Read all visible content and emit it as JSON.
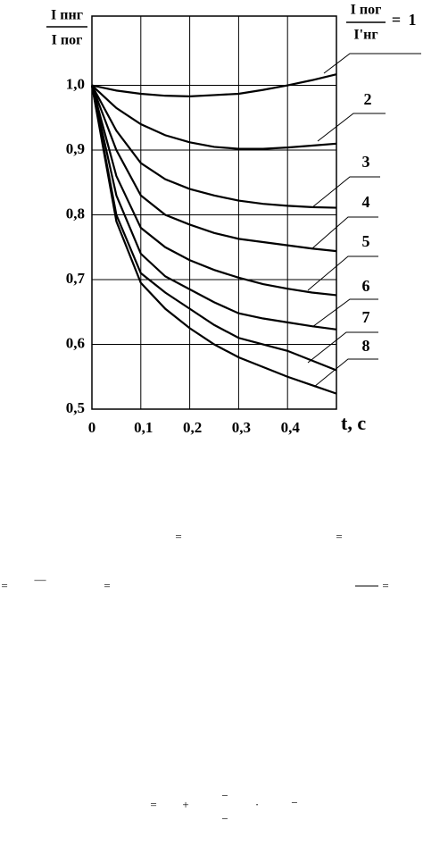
{
  "chart_data": {
    "type": "line",
    "y_label": {
      "numerator": "I пнг",
      "denominator": "I пог"
    },
    "legend_title": {
      "numerator": "I пог",
      "denominator": "I'нг",
      "equals": "="
    },
    "x_label": "t, c",
    "x": [
      0,
      0.05,
      0.1,
      0.15,
      0.2,
      0.25,
      0.3,
      0.35,
      0.4,
      0.45,
      0.5
    ],
    "series": [
      {
        "name": "1",
        "color": "#000000",
        "values": [
          1.0,
          0.992,
          0.987,
          0.984,
          0.983,
          0.985,
          0.987,
          0.993,
          1.0,
          1.008,
          1.017
        ]
      },
      {
        "name": "2",
        "color": "#000000",
        "values": [
          1.0,
          0.965,
          0.94,
          0.923,
          0.912,
          0.905,
          0.902,
          0.902,
          0.904,
          0.907,
          0.91
        ]
      },
      {
        "name": "3",
        "color": "#000000",
        "values": [
          1.0,
          0.93,
          0.88,
          0.855,
          0.84,
          0.83,
          0.822,
          0.817,
          0.814,
          0.812,
          0.811
        ]
      },
      {
        "name": "4",
        "color": "#000000",
        "values": [
          1.0,
          0.9,
          0.83,
          0.8,
          0.785,
          0.772,
          0.763,
          0.758,
          0.753,
          0.748,
          0.744
        ]
      },
      {
        "name": "5",
        "color": "#000000",
        "values": [
          1.0,
          0.86,
          0.78,
          0.75,
          0.73,
          0.715,
          0.703,
          0.693,
          0.686,
          0.68,
          0.676
        ]
      },
      {
        "name": "6",
        "color": "#000000",
        "values": [
          1.0,
          0.83,
          0.74,
          0.705,
          0.685,
          0.665,
          0.648,
          0.64,
          0.634,
          0.628,
          0.623
        ]
      },
      {
        "name": "7",
        "color": "#000000",
        "values": [
          1.0,
          0.8,
          0.71,
          0.68,
          0.655,
          0.63,
          0.61,
          0.6,
          0.59,
          0.575,
          0.56
        ]
      },
      {
        "name": "8",
        "color": "#000000",
        "values": [
          1.0,
          0.79,
          0.695,
          0.655,
          0.625,
          0.6,
          0.58,
          0.565,
          0.55,
          0.537,
          0.524
        ]
      }
    ],
    "xlim": [
      0,
      0.5
    ],
    "ylim": [
      0.5,
      1.107
    ],
    "xticks": [
      0,
      {
        "value": 0.1,
        "label": "0,1"
      },
      {
        "value": 0.2,
        "label": "0,2"
      },
      {
        "value": 0.3,
        "label": "0,3"
      },
      {
        "value": 0.4,
        "label": "0,4"
      }
    ],
    "yticks": [
      {
        "value": 0.5,
        "label": "0,5"
      },
      {
        "value": 0.6,
        "label": "0,6"
      },
      {
        "value": 0.7,
        "label": "0,7"
      },
      {
        "value": 0.8,
        "label": "0,8"
      },
      {
        "value": 0.9,
        "label": "0,9"
      },
      {
        "value": 1.0,
        "label": "1,0"
      }
    ],
    "grid": true
  },
  "fragments": [
    "=",
    "=",
    "=",
    "—",
    "=",
    "=",
    "=",
    "+",
    "−",
    "·",
    "−",
    "−"
  ]
}
